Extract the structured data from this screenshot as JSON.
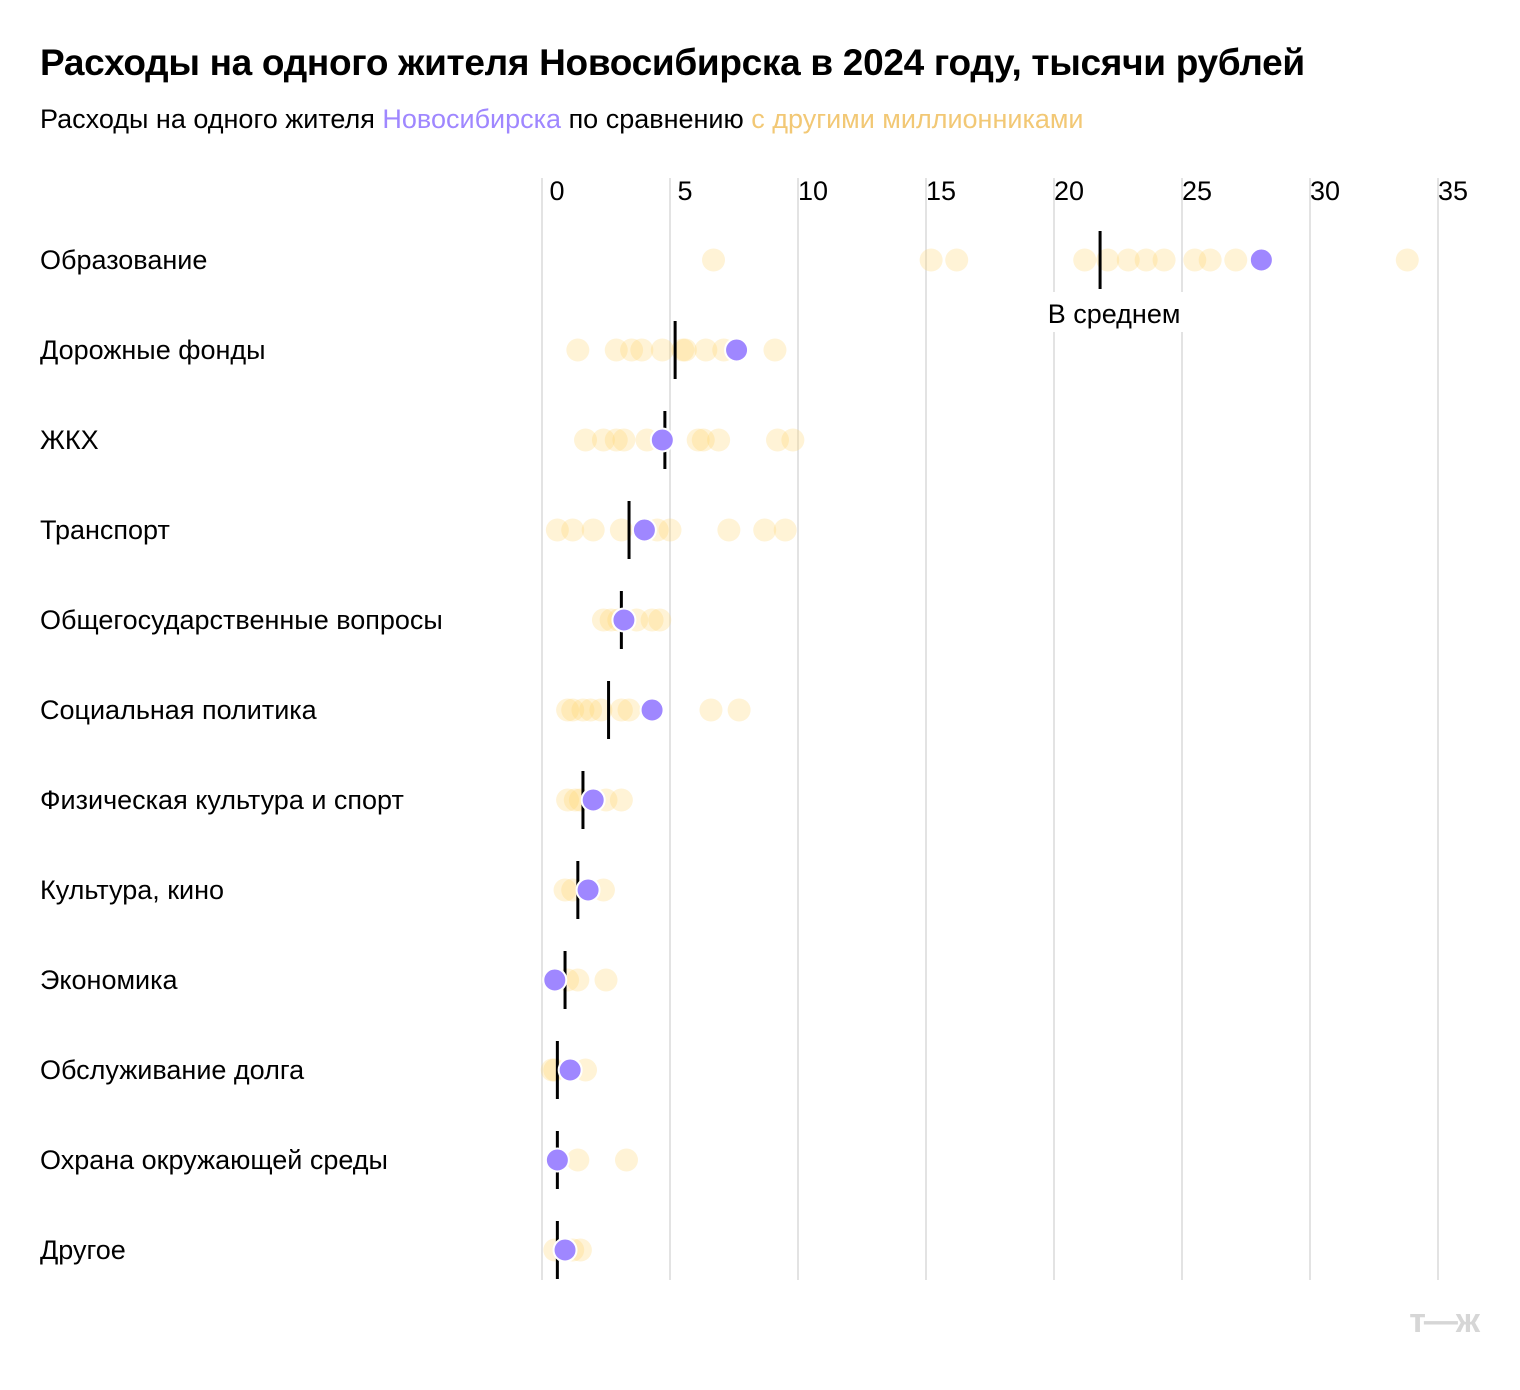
{
  "title": "Расходы на одного жителя Новосибирска в 2024 году, тысячи рублей",
  "subtitle": {
    "prefix": "Расходы на одного жителя ",
    "city": "Новосибирска",
    "middle": " по сравнению ",
    "others": "с другими миллионниками"
  },
  "logo": "т—ж",
  "colors": {
    "novosibirsk": "#9f87ff",
    "others": "#ffd56b",
    "mean": "#000000",
    "grid": "#e3e3e3"
  },
  "chart_data": {
    "type": "scatter",
    "title": "Расходы на одного жителя Новосибирска в 2024 году, тысячи рублей",
    "xlim": [
      0,
      35
    ],
    "xticks": [
      0,
      5,
      10,
      15,
      20,
      25,
      30,
      35
    ],
    "grid": true,
    "mean_label": "В среднем",
    "categories": [
      {
        "name": "Образование",
        "novosibirsk": 28.1,
        "mean": 21.8,
        "others": [
          6.7,
          15.2,
          16.2,
          21.2,
          22.1,
          22.9,
          23.6,
          24.3,
          25.5,
          26.1,
          27.1,
          33.8
        ]
      },
      {
        "name": "Дорожные фонды",
        "novosibirsk": 7.6,
        "mean": 5.2,
        "others": [
          1.4,
          2.9,
          3.5,
          3.9,
          4.7,
          5.5,
          5.6,
          6.4,
          7.1,
          9.1
        ]
      },
      {
        "name": "ЖКХ",
        "novosibirsk": 4.7,
        "mean": 4.8,
        "others": [
          1.7,
          2.4,
          2.9,
          3.2,
          4.1,
          6.1,
          6.3,
          6.9,
          9.2,
          9.8
        ]
      },
      {
        "name": "Транспорт",
        "novosibirsk": 4.0,
        "mean": 3.4,
        "others": [
          0.6,
          1.2,
          2.0,
          3.1,
          4.5,
          5.0,
          7.3,
          8.7,
          9.5
        ]
      },
      {
        "name": "Общегосударственные вопросы",
        "novosibirsk": 3.2,
        "mean": 3.1,
        "others": [
          2.4,
          2.7,
          3.0,
          3.7,
          4.3,
          4.6
        ]
      },
      {
        "name": "Социальная политика",
        "novosibirsk": 4.3,
        "mean": 2.6,
        "others": [
          1.0,
          1.2,
          1.6,
          1.9,
          2.3,
          3.1,
          3.4,
          6.6,
          7.7
        ]
      },
      {
        "name": "Физическая культура и спорт",
        "novosibirsk": 2.0,
        "mean": 1.6,
        "others": [
          1.0,
          1.3,
          1.5,
          2.5,
          3.1
        ]
      },
      {
        "name": "Культура, кино",
        "novosibirsk": 1.8,
        "mean": 1.4,
        "others": [
          0.9,
          1.2,
          2.4
        ]
      },
      {
        "name": "Экономика",
        "novosibirsk": 0.5,
        "mean": 0.9,
        "others": [
          1.0,
          1.4,
          2.5
        ]
      },
      {
        "name": "Обслуживание долга",
        "novosibirsk": 1.1,
        "mean": 0.6,
        "others": [
          0.4,
          0.5,
          1.7
        ]
      },
      {
        "name": "Охрана окружающей среды",
        "novosibirsk": 0.6,
        "mean": 0.6,
        "others": [
          1.4,
          3.3
        ]
      },
      {
        "name": "Другое",
        "novosibirsk": 0.9,
        "mean": 0.6,
        "others": [
          0.5,
          1.2,
          1.5
        ]
      }
    ]
  }
}
